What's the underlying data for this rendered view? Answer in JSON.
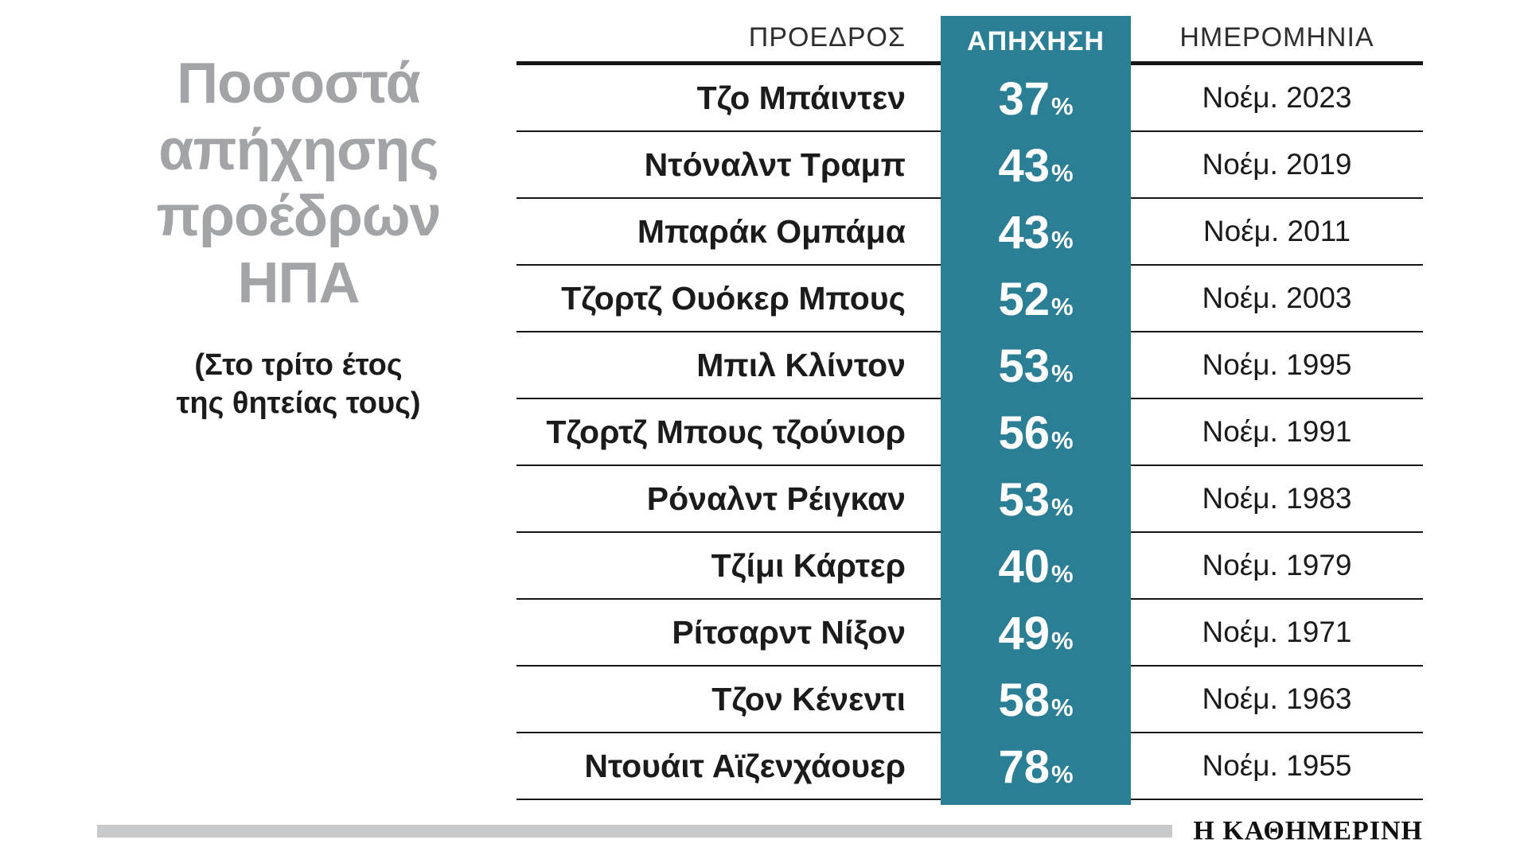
{
  "title": {
    "lines": [
      "Ποσοστά",
      "απήχησης",
      "προέδρων",
      "ΗΠΑ"
    ],
    "subtitle_lines": [
      "(Στο τρίτο έτος",
      "της θητείας τους)"
    ]
  },
  "table": {
    "headers": {
      "president": "ΠΡΟΕΔΡΟΣ",
      "approval": "ΑΠΗΧΗΣΗ",
      "date": "ΗΜΕΡΟΜΗΝΙΑ"
    },
    "percent_symbol": "%",
    "rows": [
      {
        "president": "Τζο Μπάιντεν",
        "value": "37",
        "date": "Νοέμ. 2023"
      },
      {
        "president": "Ντόναλντ Τραμπ",
        "value": "43",
        "date": "Νοέμ. 2019"
      },
      {
        "president": "Μπαράκ Ομπάμα",
        "value": "43",
        "date": "Νοέμ. 2011"
      },
      {
        "president": "Τζορτζ Ουόκερ Μπους",
        "value": "52",
        "date": "Νοέμ. 2003"
      },
      {
        "president": "Μπιλ Κλίντον",
        "value": "53",
        "date": "Νοέμ. 1995"
      },
      {
        "president": "Τζορτζ Μπους τζούνιορ",
        "value": "56",
        "date": "Νοέμ. 1991"
      },
      {
        "president": "Ρόναλντ Ρέιγκαν",
        "value": "53",
        "date": "Νοέμ. 1983"
      },
      {
        "president": "Τζίμι Κάρτερ",
        "value": "40",
        "date": "Νοέμ. 1979"
      },
      {
        "president": "Ρίτσαρντ Νίξον",
        "value": "49",
        "date": "Νοέμ. 1971"
      },
      {
        "president": "Τζον Κένεντι",
        "value": "58",
        "date": "Νοέμ. 1963"
      },
      {
        "president": "Ντουάιτ Αϊζενχάουερ",
        "value": "78",
        "date": "Νοέμ. 1955"
      }
    ]
  },
  "footer": {
    "brand": "Η ΚΑΘΗΜΕΡΙΝΗ"
  },
  "colors": {
    "accent_teal": "#2b7f94",
    "title_gray": "#a2a4a7",
    "text_dark": "#1b1b1b",
    "footer_bar_gray": "#c8c9cb"
  },
  "chart_data": {
    "type": "table",
    "title": "Ποσοστά απήχησης προέδρων ΗΠΑ",
    "subtitle": "(Στο τρίτο έτος της θητείας τους)",
    "columns": [
      "ΠΡΟΕΔΡΟΣ",
      "ΑΠΗΧΗΣΗ",
      "ΗΜΕΡΟΜΗΝΙΑ"
    ],
    "rows": [
      [
        "Τζο Μπάιντεν",
        "37%",
        "Νοέμ. 2023"
      ],
      [
        "Ντόναλντ Τραμπ",
        "43%",
        "Νοέμ. 2019"
      ],
      [
        "Μπαράκ Ομπάμα",
        "43%",
        "Νοέμ. 2011"
      ],
      [
        "Τζορτζ Ουόκερ Μπους",
        "52%",
        "Νοέμ. 2003"
      ],
      [
        "Μπιλ Κλίντον",
        "53%",
        "Νοέμ. 1995"
      ],
      [
        "Τζορτζ Μπους τζούνιορ",
        "56%",
        "Νοέμ. 1991"
      ],
      [
        "Ρόναλντ Ρέιγκαν",
        "53%",
        "Νοέμ. 1983"
      ],
      [
        "Τζίμι Κάρτερ",
        "40%",
        "Νοέμ. 1979"
      ],
      [
        "Ρίτσαρντ Νίξον",
        "49%",
        "Νοέμ. 1971"
      ],
      [
        "Τζον Κένεντι",
        "58%",
        "Νοέμ. 1963"
      ],
      [
        "Ντουάιτ Αϊζενχάουερ",
        "78%",
        "Νοέμ. 1955"
      ]
    ],
    "approval_values": [
      37,
      43,
      43,
      52,
      53,
      56,
      53,
      40,
      49,
      58,
      78
    ],
    "source": "Η ΚΑΘΗΜΕΡΙΝΗ",
    "accent_color": "#2b7f94"
  }
}
